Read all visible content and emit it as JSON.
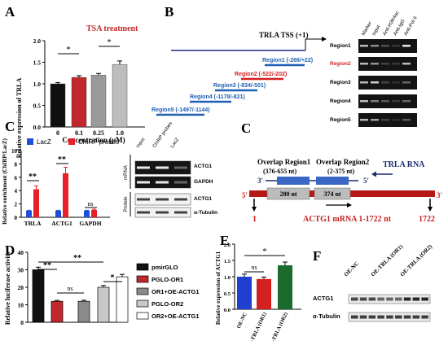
{
  "panels": {
    "a": {
      "letter": "A",
      "title": "TSA treatment",
      "ylabel": "Relative expression of TRLA",
      "xlabel": "Concentration (μM)",
      "yticks": [
        "0.0",
        "0.5",
        "1.0",
        "1.5",
        "2.0"
      ],
      "sig": [
        "*",
        "*"
      ]
    },
    "b": {
      "letter": "B",
      "tss_label": "TRLA TSS (+1)",
      "regions": [
        {
          "label": "Region1 (-266/+22)",
          "color": "#1f5fb4"
        },
        {
          "label": "Region2 (-522/-202)",
          "color": "#d42020"
        },
        {
          "label": "Region3 (-834/-501)",
          "color": "#1f5fb4"
        },
        {
          "label": "Region4 (-1178/-821)",
          "color": "#1f5fb4"
        },
        {
          "label": "Region5 (-1497/-1144)",
          "color": "#1f5fb4"
        }
      ],
      "gel_columns": [
        "Marker",
        "Input",
        "Anti-H3K4ac",
        "Anti-IgG",
        "Anti-Pol II"
      ],
      "gel_rows": [
        "Region1",
        "Region2",
        "Region3",
        "Region4",
        "Region5"
      ]
    },
    "c1": {
      "letter": "C",
      "legend": [
        "LacZ",
        "ChIRP probes"
      ],
      "ylabel": "Relative enrichment (ChIRP/LacZ)",
      "yticks": [
        "0",
        "2",
        "4",
        "6",
        "8",
        "10"
      ],
      "sig": [
        "**",
        "**",
        "ns"
      ],
      "blot_cols": [
        "Input",
        "ChIRP probes",
        "LacZ"
      ],
      "blot_side": [
        "mRNA",
        "Protein"
      ],
      "blot_rows": [
        "ACTG1",
        "GAPDH",
        "ACTG1",
        "α-Tubulin"
      ]
    },
    "c2": {
      "letter": "C",
      "overlap1_title": "Overlap Region1",
      "overlap1_range": "(376-655 nt)",
      "overlap2_title": "Overlap Region2",
      "overlap2_range": "(2-375 nt)",
      "trla_rna": "TRLA RNA",
      "prime3": "3′",
      "prime5": "5′",
      "seg1": "280 nt",
      "seg2": "374 nt",
      "mrna_label": "ACTG1 mRNA 1-1722 nt",
      "start_pos": "1",
      "end_pos": "1722"
    },
    "d": {
      "letter": "D",
      "ylabel": "Relative luciferase activity",
      "yticks": [
        "0",
        "10",
        "20",
        "30",
        "40"
      ],
      "sig": [
        "**",
        "**",
        "ns",
        "*"
      ],
      "legend": [
        "pmirGLO",
        "PGLO-OR1",
        "OR1+OE-ACTG1",
        "PGLO-OR2",
        "OR2+OE-ACTG1"
      ]
    },
    "e": {
      "letter": "E",
      "ylabel": "Relative expression of ACTG1",
      "yticks": [
        "0.0",
        "0.5",
        "1.0",
        "1.5",
        "2.0"
      ],
      "sig": [
        "ns",
        "*"
      ]
    },
    "f": {
      "letter": "F",
      "col_labels": [
        "OE-NC",
        "OE-TRLA (OR1)",
        "OE-TRLA (OR2)"
      ],
      "row_labels": [
        "ACTG1",
        "α-Tubulin"
      ]
    }
  },
  "chart_data": [
    {
      "type": "bar",
      "title": "TSA treatment",
      "xlabel": "Concentration (μM)",
      "ylabel": "Relative expression of TRLA",
      "categories": [
        "0",
        "0.1",
        "0.25",
        "1.0"
      ],
      "values": [
        1.0,
        1.15,
        1.2,
        1.45
      ],
      "errors": [
        0.03,
        0.04,
        0.04,
        0.08
      ],
      "colors": [
        "#111111",
        "#c0282d",
        "#9a9a9a",
        "#bdbdbd"
      ],
      "ylim": [
        0,
        2.0
      ]
    },
    {
      "type": "bar",
      "xlabel": "",
      "ylabel": "Relative enrichment (ChIRP/LacZ)",
      "categories": [
        "TRLA",
        "ACTG1",
        "GAPDH"
      ],
      "series": [
        {
          "name": "LacZ",
          "color": "#1f4fd8",
          "values": [
            1.0,
            1.0,
            1.0
          ],
          "errors": [
            0.05,
            0.05,
            0.05
          ]
        },
        {
          "name": "ChIRP probes",
          "color": "#e8202a",
          "values": [
            4.2,
            6.6,
            1.1
          ],
          "errors": [
            0.5,
            0.9,
            0.1
          ]
        }
      ],
      "ylim": [
        0,
        10
      ]
    },
    {
      "type": "bar",
      "xlabel": "",
      "ylabel": "Relative luciferase activity",
      "categories": [
        "pmirGLO",
        "PGLO-OR1",
        "OR1+OE-ACTG1",
        "PGLO-OR2",
        "OR2+OE-ACTG1"
      ],
      "values": [
        30.0,
        12.0,
        12.0,
        20.0,
        26.0
      ],
      "errors": [
        1.5,
        0.5,
        0.6,
        1.0,
        1.4
      ],
      "colors": [
        "#111111",
        "#c0282d",
        "#8a8a8a",
        "#c8c8c8",
        "#ffffff"
      ],
      "ylim": [
        0,
        40
      ]
    },
    {
      "type": "bar",
      "xlabel": "",
      "ylabel": "Relative expression of ACTG1",
      "categories": [
        "OE-NC",
        "OE-TRLA (OR1)",
        "OE-TRLA (OR2)"
      ],
      "values": [
        1.0,
        0.93,
        1.35
      ],
      "errors": [
        0.08,
        0.06,
        0.1
      ],
      "colors": [
        "#1f3fd0",
        "#d42020",
        "#1b6b2c"
      ],
      "ylim": [
        0,
        2.0
      ]
    }
  ]
}
